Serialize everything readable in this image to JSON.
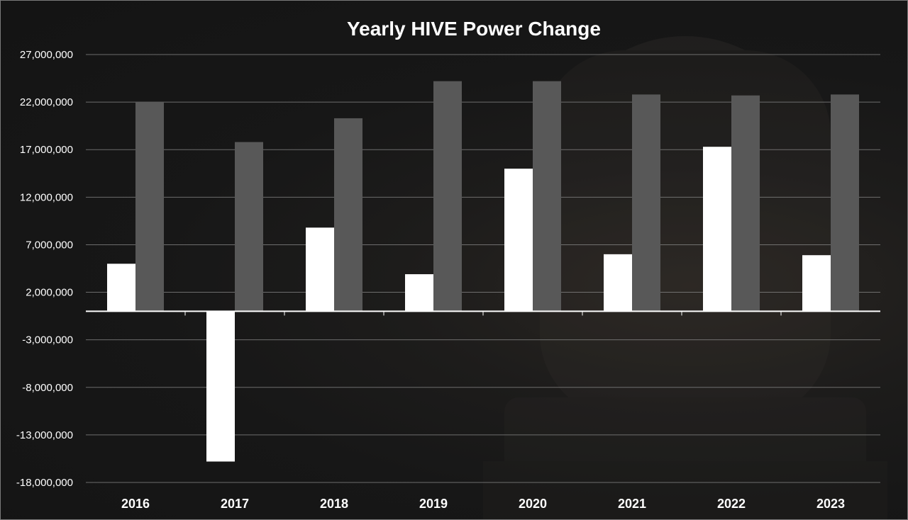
{
  "chart_data": {
    "type": "bar",
    "title": "Yearly HIVE Power Change",
    "xlabel": "",
    "ylabel": "",
    "categories": [
      "2016",
      "2017",
      "2018",
      "2019",
      "2020",
      "2021",
      "2022",
      "2023"
    ],
    "series": [
      {
        "values": [
          5000000,
          -15800000,
          8800000,
          3900000,
          15000000,
          6000000,
          17300000,
          5900000
        ],
        "color": "#ffffff"
      },
      {
        "values": [
          22000000,
          17800000,
          20300000,
          24200000,
          24200000,
          22800000,
          22700000,
          22800000
        ],
        "color": "#585858"
      }
    ],
    "ylim": [
      -18000000,
      27000000
    ],
    "yticks": [
      27000000,
      22000000,
      17000000,
      12000000,
      7000000,
      2000000,
      -3000000,
      -8000000,
      -13000000,
      -18000000
    ],
    "ytick_labels": [
      "27,000,000",
      "22,000,000",
      "17,000,000",
      "12,000,000",
      "7,000,000",
      "2,000,000",
      "-3,000,000",
      "-8,000,000",
      "-13,000,000",
      "-18,000,000"
    ],
    "grid": true,
    "legend": "none"
  }
}
